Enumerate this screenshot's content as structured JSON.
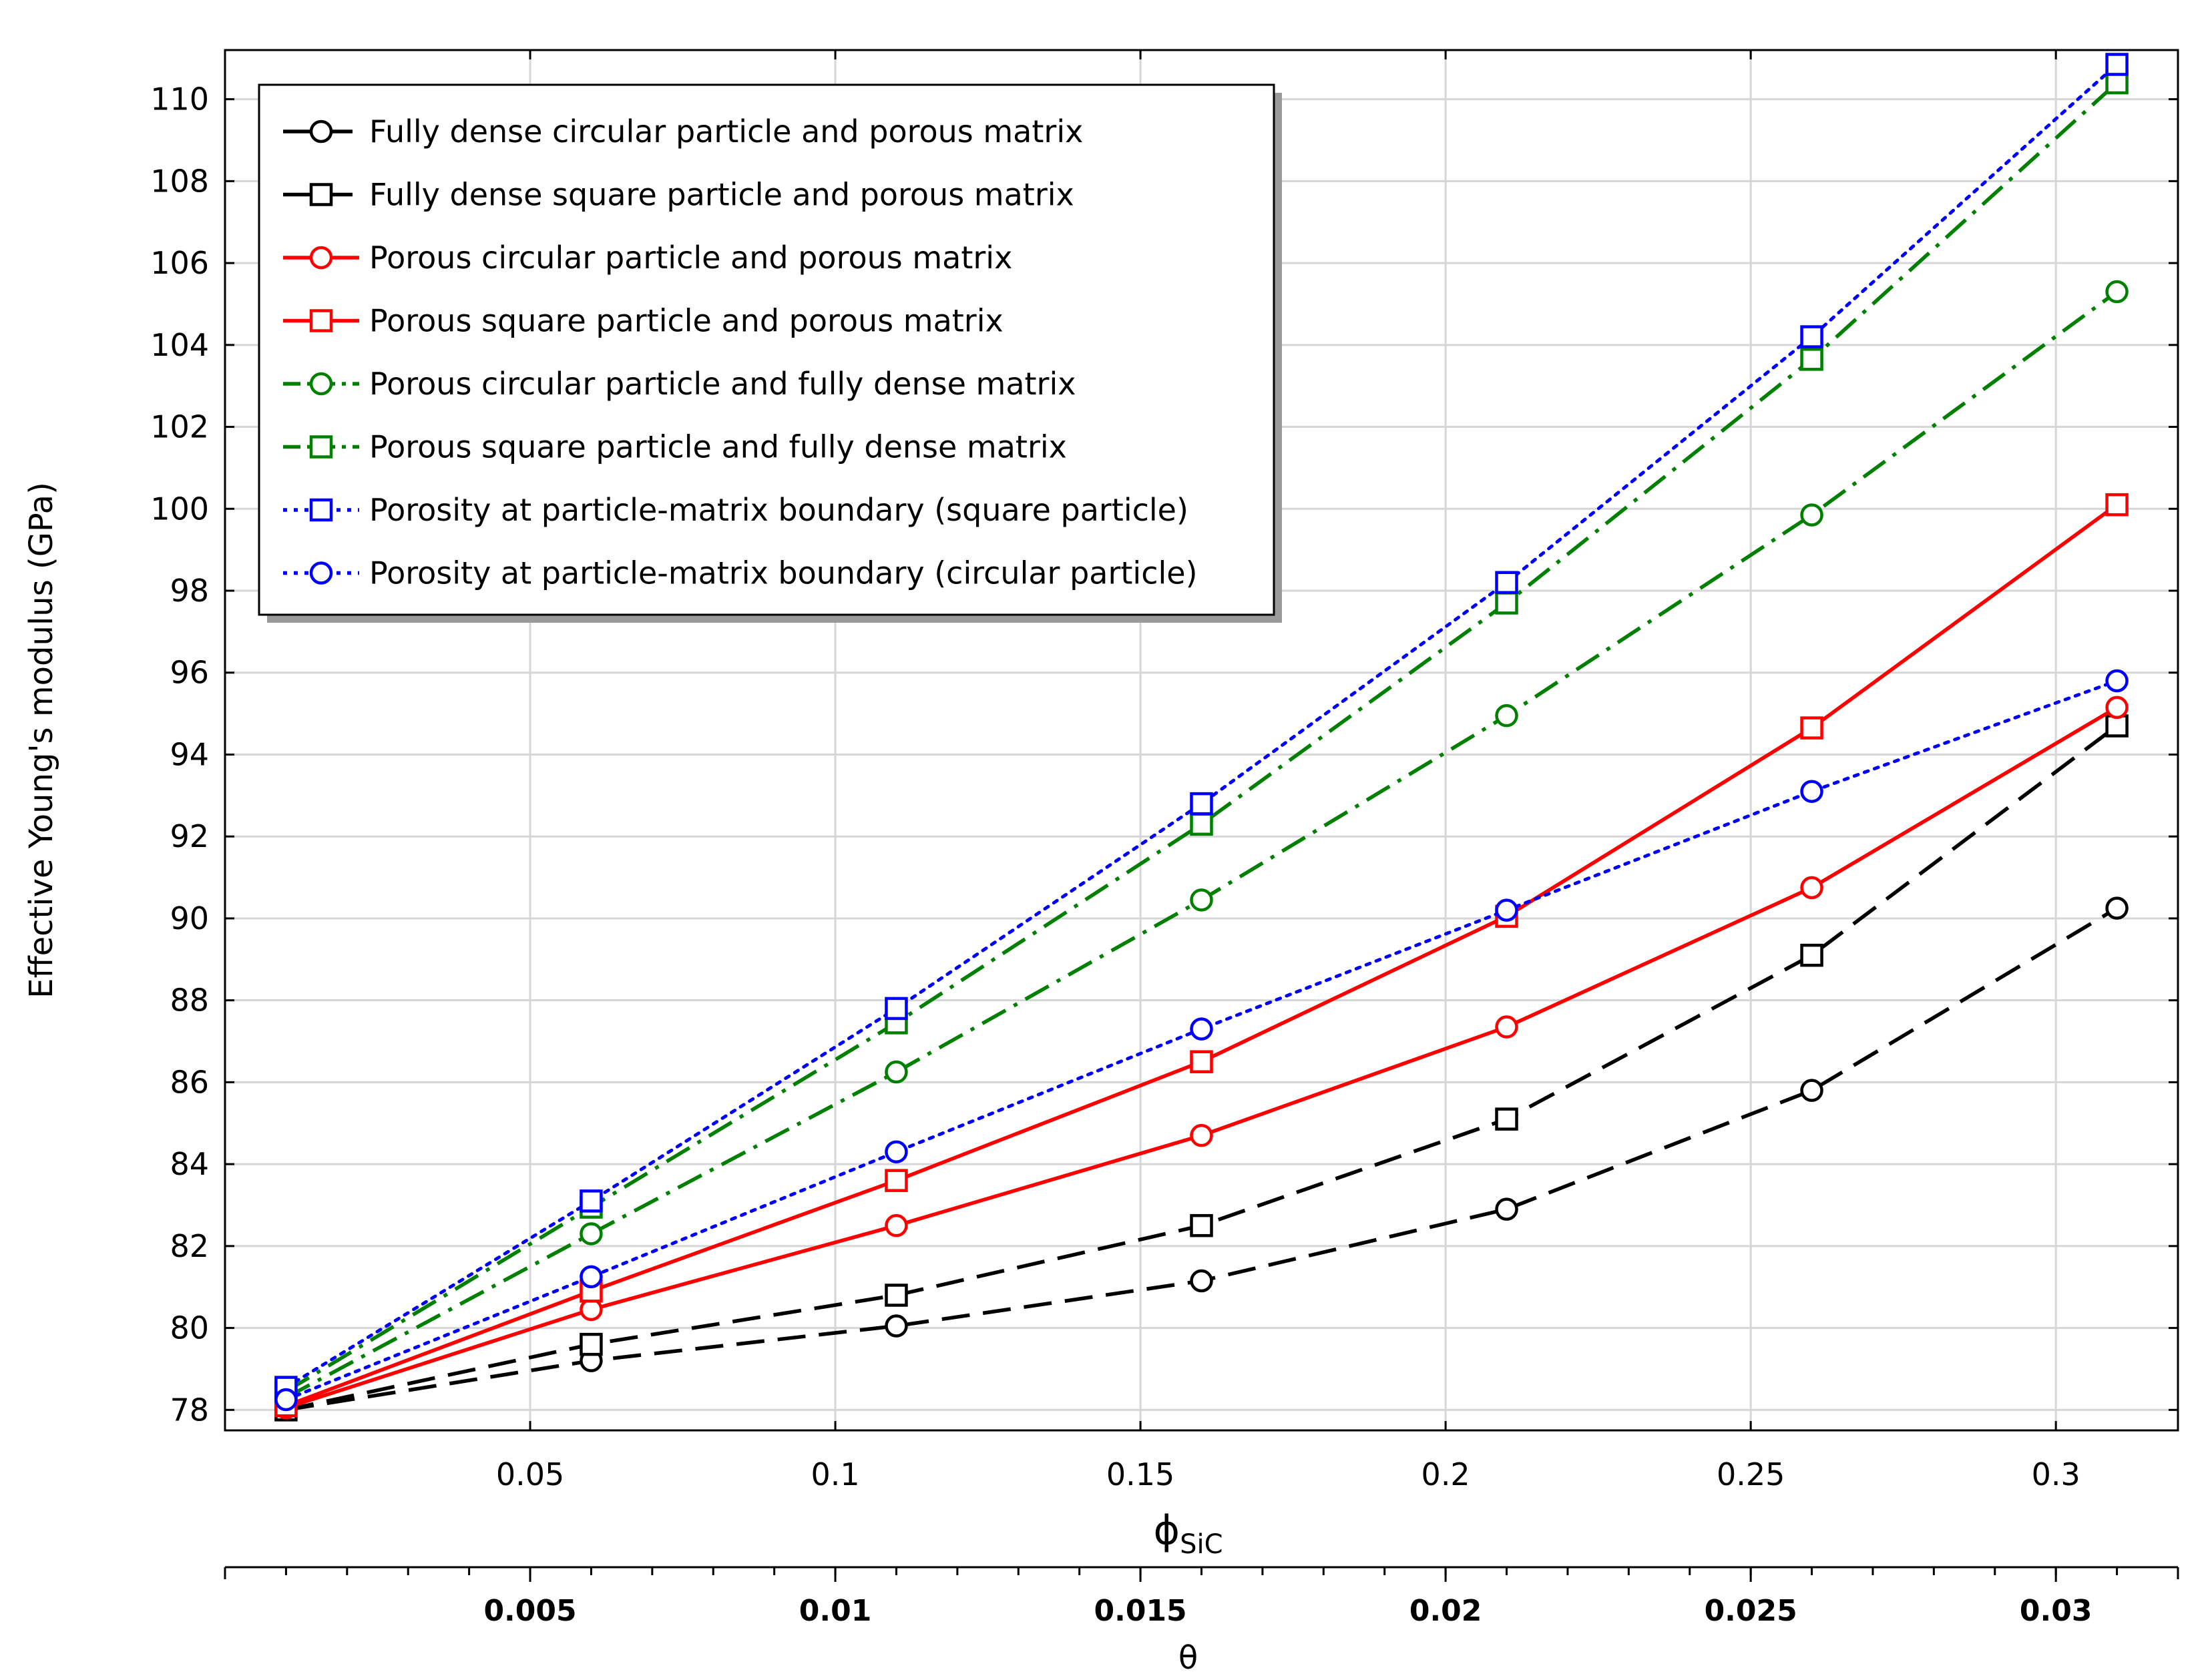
{
  "chart_data": {
    "type": "line",
    "xlabel_main": "ϕ",
    "xlabel_sub": "SiC",
    "xlabel_secondary": "θ",
    "ylabel": "Effective Young's modulus (GPa)",
    "xlim": [
      0.0,
      0.32
    ],
    "ylim": [
      77.5,
      111.2
    ],
    "xlim_secondary": [
      0.0,
      0.032
    ],
    "grid": true,
    "legend_position": "top-left",
    "x": [
      0.01,
      0.06,
      0.11,
      0.16,
      0.21,
      0.26,
      0.31
    ],
    "x_ticks": [
      0.05,
      0.1,
      0.15,
      0.2,
      0.25,
      0.3
    ],
    "x_tick_labels": [
      "0.05",
      "0.1",
      "0.15",
      "0.2",
      "0.25",
      "0.3"
    ],
    "x2_ticks": [
      0.005,
      0.01,
      0.015,
      0.02,
      0.025,
      0.03
    ],
    "x2_tick_labels": [
      "0.005",
      "0.01",
      "0.015",
      "0.02",
      "0.025",
      "0.03"
    ],
    "y_ticks": [
      78,
      80,
      82,
      84,
      86,
      88,
      90,
      92,
      94,
      96,
      98,
      100,
      102,
      104,
      106,
      108,
      110
    ],
    "y_tick_labels": [
      "78",
      "80",
      "82",
      "84",
      "86",
      "88",
      "90",
      "92",
      "94",
      "96",
      "98",
      "100",
      "102",
      "104",
      "106",
      "108",
      "110"
    ],
    "series": [
      {
        "name": "Fully dense circular particle and porous matrix",
        "color": "#000000",
        "line_style": "dashed",
        "marker": "circle",
        "values": [
          78.0,
          79.2,
          80.05,
          81.15,
          82.9,
          85.8,
          90.25
        ]
      },
      {
        "name": "Fully dense square particle and porous matrix",
        "color": "#000000",
        "line_style": "dashed",
        "marker": "square",
        "values": [
          78.0,
          79.6,
          80.8,
          82.5,
          85.1,
          89.1,
          94.7
        ]
      },
      {
        "name": "Porous circular particle and porous matrix",
        "color": "#ff0000",
        "line_style": "solid",
        "marker": "circle",
        "values": [
          78.05,
          80.45,
          82.5,
          84.7,
          87.35,
          90.75,
          95.15
        ]
      },
      {
        "name": "Porous square particle and porous matrix",
        "color": "#ff0000",
        "line_style": "solid",
        "marker": "square",
        "values": [
          78.1,
          80.9,
          83.6,
          86.5,
          90.05,
          94.65,
          100.1
        ]
      },
      {
        "name": "Porous circular particle and fully dense matrix",
        "color": "#008000",
        "line_style": "dashdot",
        "marker": "circle",
        "values": [
          78.3,
          82.3,
          86.25,
          90.45,
          94.95,
          99.85,
          105.3
        ]
      },
      {
        "name": "Porous square particle and fully dense matrix",
        "color": "#008000",
        "line_style": "dashdot",
        "marker": "square",
        "values": [
          78.45,
          82.95,
          87.45,
          92.3,
          97.7,
          103.65,
          110.4
        ]
      },
      {
        "name": "Porosity at particle-matrix boundary (square particle)",
        "color": "#0000ff",
        "line_style": "dotted",
        "marker": "square",
        "values": [
          78.55,
          83.1,
          87.8,
          92.8,
          98.2,
          104.2,
          110.85
        ]
      },
      {
        "name": "Porosity at particle-matrix boundary (circular particle)",
        "color": "#0000ff",
        "line_style": "dotted",
        "marker": "circle",
        "values": [
          78.25,
          81.25,
          84.3,
          87.3,
          90.2,
          93.1,
          95.8
        ]
      }
    ]
  }
}
